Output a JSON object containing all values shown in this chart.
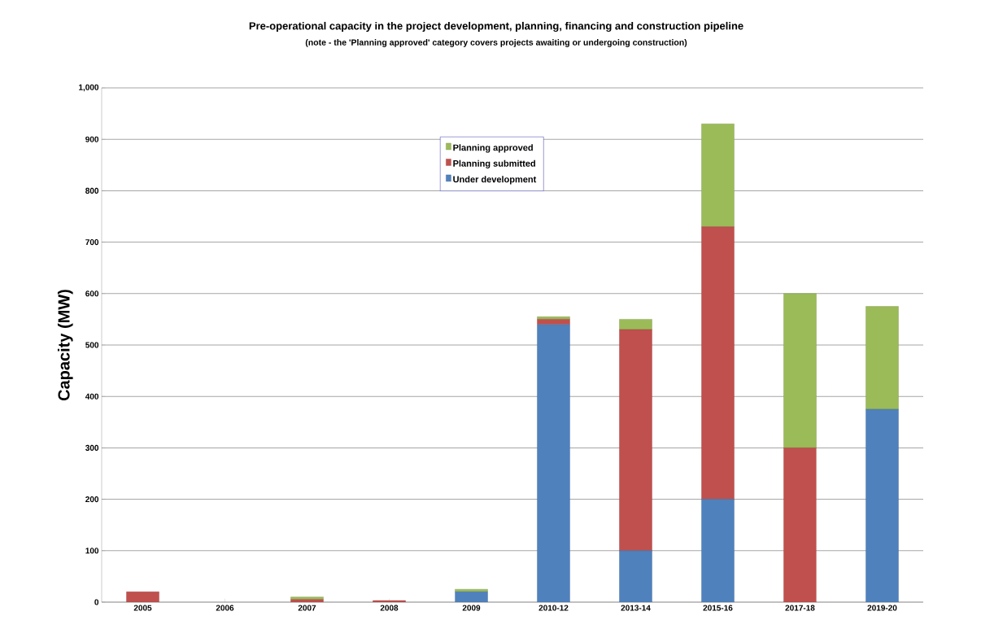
{
  "chart_data": {
    "type": "bar",
    "stacked": true,
    "title": "Pre-operational capacity in the project development, planning, financing and construction pipeline",
    "subtitle": "(note - the 'Planning approved' category covers projects awaiting or undergoing construction)",
    "ylabel": "Capacity (MW)",
    "categories": [
      "2005",
      "2006",
      "2007",
      "2008",
      "2009",
      "2010-12",
      "2013-14",
      "2015-16",
      "2017-18",
      "2019-20"
    ],
    "series": [
      {
        "name": "Under development",
        "color": "#4f81bd",
        "values": [
          0,
          0,
          0,
          0,
          20,
          540,
          100,
          200,
          0,
          375
        ]
      },
      {
        "name": "Planning submitted",
        "color": "#c0504d",
        "values": [
          20,
          0,
          5,
          3,
          0,
          10,
          430,
          530,
          300,
          0
        ]
      },
      {
        "name": "Planning approved",
        "color": "#9bbb59",
        "values": [
          0,
          0,
          5,
          0,
          5,
          5,
          20,
          200,
          300,
          200
        ]
      }
    ],
    "ylim": [
      0,
      1000
    ],
    "yticks": [
      0,
      {
        "value": 100,
        "label": "100"
      },
      {
        "value": 200,
        "label": "200"
      },
      {
        "value": 300,
        "label": "300"
      },
      {
        "value": 400,
        "label": "400"
      },
      {
        "value": 500,
        "label": "500"
      },
      {
        "value": 600,
        "label": "600"
      },
      {
        "value": 700,
        "label": "700"
      },
      {
        "value": 800,
        "label": "800"
      },
      {
        "value": 900,
        "label": "900"
      },
      {
        "value": 1000,
        "label": "1,000"
      }
    ],
    "grid": "y",
    "legend": "top"
  }
}
